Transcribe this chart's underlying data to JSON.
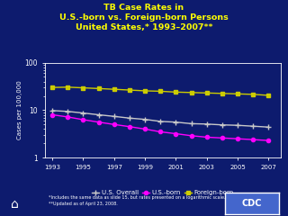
{
  "title_line1": "TB Case Rates in",
  "title_line2": "U.S.-born vs. Foreign-born Persons",
  "title_line3": "United States,* 1993–2007**",
  "background_color": "#0d1b6e",
  "plot_bg_color": "#0d1b6e",
  "years": [
    1993,
    1994,
    1995,
    1996,
    1997,
    1998,
    1999,
    2000,
    2001,
    2002,
    2003,
    2004,
    2005,
    2006,
    2007
  ],
  "us_overall": [
    9.8,
    9.4,
    8.7,
    8.0,
    7.4,
    6.8,
    6.4,
    5.8,
    5.6,
    5.2,
    5.1,
    4.9,
    4.8,
    4.6,
    4.4
  ],
  "us_born": [
    8.0,
    7.2,
    6.3,
    5.6,
    5.0,
    4.5,
    4.0,
    3.5,
    3.2,
    2.9,
    2.7,
    2.6,
    2.5,
    2.4,
    2.3
  ],
  "foreign_born": [
    30.0,
    30.5,
    29.5,
    28.5,
    27.5,
    26.5,
    25.5,
    25.0,
    24.0,
    23.5,
    23.0,
    22.5,
    22.0,
    21.5,
    20.5
  ],
  "us_overall_color": "#c8c8c8",
  "us_born_color": "#ff00ff",
  "foreign_born_color": "#cccc00",
  "ylabel": "Cases per 100,000",
  "footnote1": "*Includes the same data as slide 15, but rates presented on a logarithmic scale.",
  "footnote2": "**Updated as of April 23, 2008.",
  "legend_labels": [
    "U.S. Overall",
    "U.S.-born",
    "Foreign-born"
  ],
  "cdc_bg": "#4466cc",
  "title_color": "#ffff00",
  "text_color": "#ffffff"
}
